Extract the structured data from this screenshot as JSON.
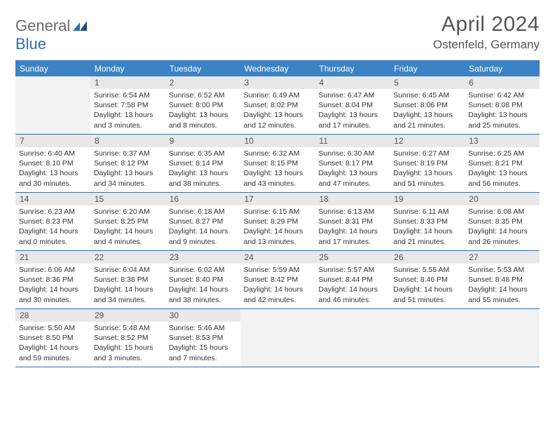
{
  "brand": {
    "part1": "General",
    "part2": "Blue"
  },
  "title": "April 2024",
  "location": "Ostenfeld, Germany",
  "weekdays": [
    "Sunday",
    "Monday",
    "Tuesday",
    "Wednesday",
    "Thursday",
    "Friday",
    "Saturday"
  ],
  "colors": {
    "header_bg": "#3b83c4",
    "border": "#2f6fb0",
    "daynum_bg": "#e8e8e8",
    "empty_bg": "#f2f2f2"
  },
  "weeks": [
    [
      null,
      {
        "d": "1",
        "sr": "6:54 AM",
        "ss": "7:58 PM",
        "dl": "13 hours and 3 minutes."
      },
      {
        "d": "2",
        "sr": "6:52 AM",
        "ss": "8:00 PM",
        "dl": "13 hours and 8 minutes."
      },
      {
        "d": "3",
        "sr": "6:49 AM",
        "ss": "8:02 PM",
        "dl": "13 hours and 12 minutes."
      },
      {
        "d": "4",
        "sr": "6:47 AM",
        "ss": "8:04 PM",
        "dl": "13 hours and 17 minutes."
      },
      {
        "d": "5",
        "sr": "6:45 AM",
        "ss": "8:06 PM",
        "dl": "13 hours and 21 minutes."
      },
      {
        "d": "6",
        "sr": "6:42 AM",
        "ss": "8:08 PM",
        "dl": "13 hours and 25 minutes."
      }
    ],
    [
      {
        "d": "7",
        "sr": "6:40 AM",
        "ss": "8:10 PM",
        "dl": "13 hours and 30 minutes."
      },
      {
        "d": "8",
        "sr": "6:37 AM",
        "ss": "8:12 PM",
        "dl": "13 hours and 34 minutes."
      },
      {
        "d": "9",
        "sr": "6:35 AM",
        "ss": "8:14 PM",
        "dl": "13 hours and 38 minutes."
      },
      {
        "d": "10",
        "sr": "6:32 AM",
        "ss": "8:15 PM",
        "dl": "13 hours and 43 minutes."
      },
      {
        "d": "11",
        "sr": "6:30 AM",
        "ss": "8:17 PM",
        "dl": "13 hours and 47 minutes."
      },
      {
        "d": "12",
        "sr": "6:27 AM",
        "ss": "8:19 PM",
        "dl": "13 hours and 51 minutes."
      },
      {
        "d": "13",
        "sr": "6:25 AM",
        "ss": "8:21 PM",
        "dl": "13 hours and 56 minutes."
      }
    ],
    [
      {
        "d": "14",
        "sr": "6:23 AM",
        "ss": "8:23 PM",
        "dl": "14 hours and 0 minutes."
      },
      {
        "d": "15",
        "sr": "6:20 AM",
        "ss": "8:25 PM",
        "dl": "14 hours and 4 minutes."
      },
      {
        "d": "16",
        "sr": "6:18 AM",
        "ss": "8:27 PM",
        "dl": "14 hours and 9 minutes."
      },
      {
        "d": "17",
        "sr": "6:15 AM",
        "ss": "8:29 PM",
        "dl": "14 hours and 13 minutes."
      },
      {
        "d": "18",
        "sr": "6:13 AM",
        "ss": "8:31 PM",
        "dl": "14 hours and 17 minutes."
      },
      {
        "d": "19",
        "sr": "6:11 AM",
        "ss": "8:33 PM",
        "dl": "14 hours and 21 minutes."
      },
      {
        "d": "20",
        "sr": "6:08 AM",
        "ss": "8:35 PM",
        "dl": "14 hours and 26 minutes."
      }
    ],
    [
      {
        "d": "21",
        "sr": "6:06 AM",
        "ss": "8:36 PM",
        "dl": "14 hours and 30 minutes."
      },
      {
        "d": "22",
        "sr": "6:04 AM",
        "ss": "8:38 PM",
        "dl": "14 hours and 34 minutes."
      },
      {
        "d": "23",
        "sr": "6:02 AM",
        "ss": "8:40 PM",
        "dl": "14 hours and 38 minutes."
      },
      {
        "d": "24",
        "sr": "5:59 AM",
        "ss": "8:42 PM",
        "dl": "14 hours and 42 minutes."
      },
      {
        "d": "25",
        "sr": "5:57 AM",
        "ss": "8:44 PM",
        "dl": "14 hours and 46 minutes."
      },
      {
        "d": "26",
        "sr": "5:55 AM",
        "ss": "8:46 PM",
        "dl": "14 hours and 51 minutes."
      },
      {
        "d": "27",
        "sr": "5:53 AM",
        "ss": "8:48 PM",
        "dl": "14 hours and 55 minutes."
      }
    ],
    [
      {
        "d": "28",
        "sr": "5:50 AM",
        "ss": "8:50 PM",
        "dl": "14 hours and 59 minutes."
      },
      {
        "d": "29",
        "sr": "5:48 AM",
        "ss": "8:52 PM",
        "dl": "15 hours and 3 minutes."
      },
      {
        "d": "30",
        "sr": "5:46 AM",
        "ss": "8:53 PM",
        "dl": "15 hours and 7 minutes."
      },
      null,
      null,
      null,
      null
    ]
  ]
}
